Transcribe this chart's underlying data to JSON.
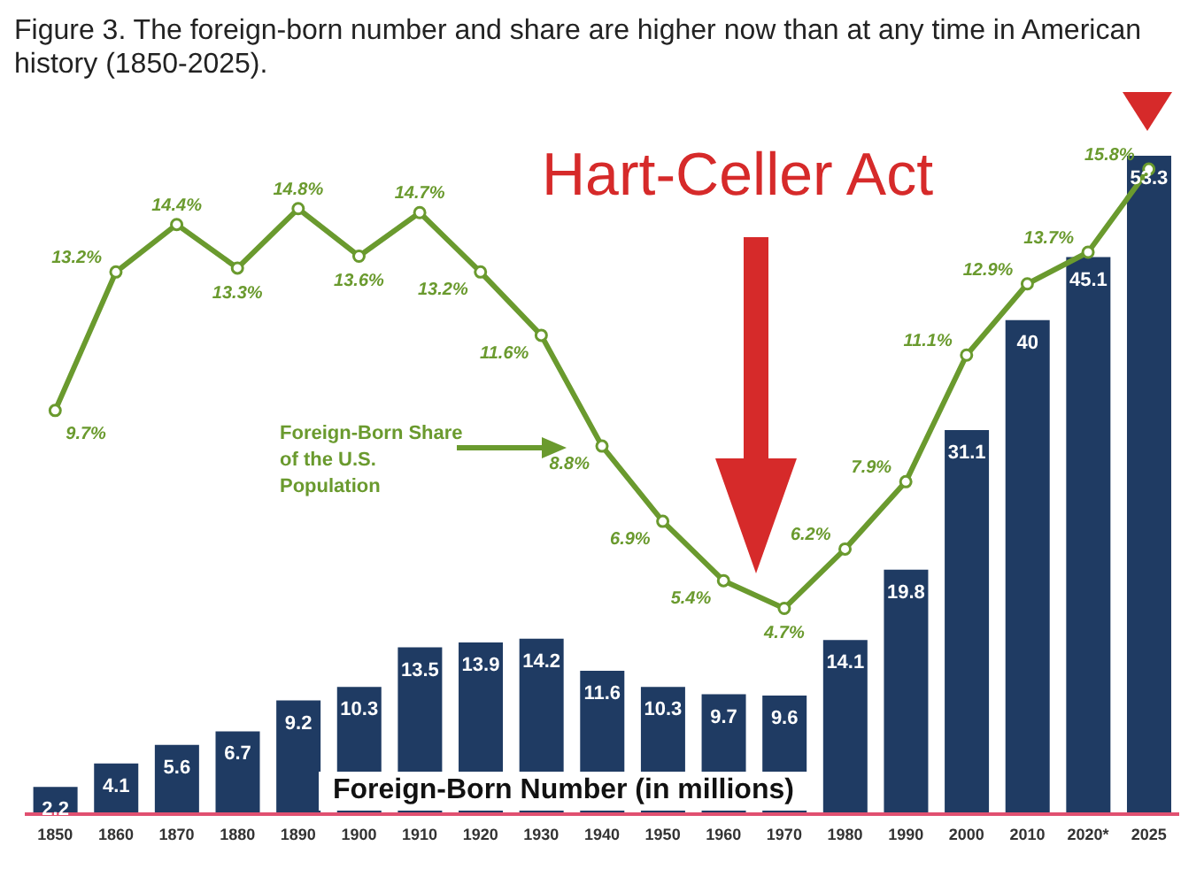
{
  "chart_data": {
    "type": "bar",
    "title": "Figure 3. The foreign-born number and share are higher now than at any time in American history (1850-2025).",
    "categories": [
      "1850",
      "1860",
      "1870",
      "1880",
      "1890",
      "1900",
      "1910",
      "1920",
      "1930",
      "1940",
      "1950",
      "1960",
      "1970",
      "1980",
      "1990",
      "2000",
      "2010",
      "2020*",
      "2025"
    ],
    "series": [
      {
        "name": "Foreign-Born Number (in millions)",
        "color": "#1f3b63",
        "values": [
          2.2,
          4.1,
          5.6,
          6.7,
          9.2,
          10.3,
          13.5,
          13.9,
          14.2,
          11.6,
          10.3,
          9.7,
          9.6,
          14.1,
          19.8,
          31.1,
          40,
          45.1,
          53.3
        ]
      },
      {
        "name": "Foreign-Born Share of the U.S. Population",
        "type": "line",
        "axis": "y2",
        "color": "#6a9a2e",
        "values": [
          9.7,
          13.2,
          14.4,
          13.3,
          14.8,
          13.6,
          14.7,
          13.2,
          11.6,
          8.8,
          6.9,
          5.4,
          4.7,
          6.2,
          7.9,
          11.1,
          12.9,
          13.7,
          15.8
        ],
        "value_labels": [
          "9.7%",
          "13.2%",
          "14.4%",
          "13.3%",
          "14.8%",
          "13.6%",
          "14.7%",
          "13.2%",
          "11.6%",
          "8.8%",
          "6.9%",
          "5.4%",
          "4.7%",
          "6.2%",
          "7.9%",
          "11.1%",
          "12.9%",
          "13.7%",
          "15.8%"
        ]
      }
    ],
    "data_labels": true,
    "marker": "circle",
    "legend": "left",
    "annotations": [
      "Hart-Celler Act"
    ]
  }
}
